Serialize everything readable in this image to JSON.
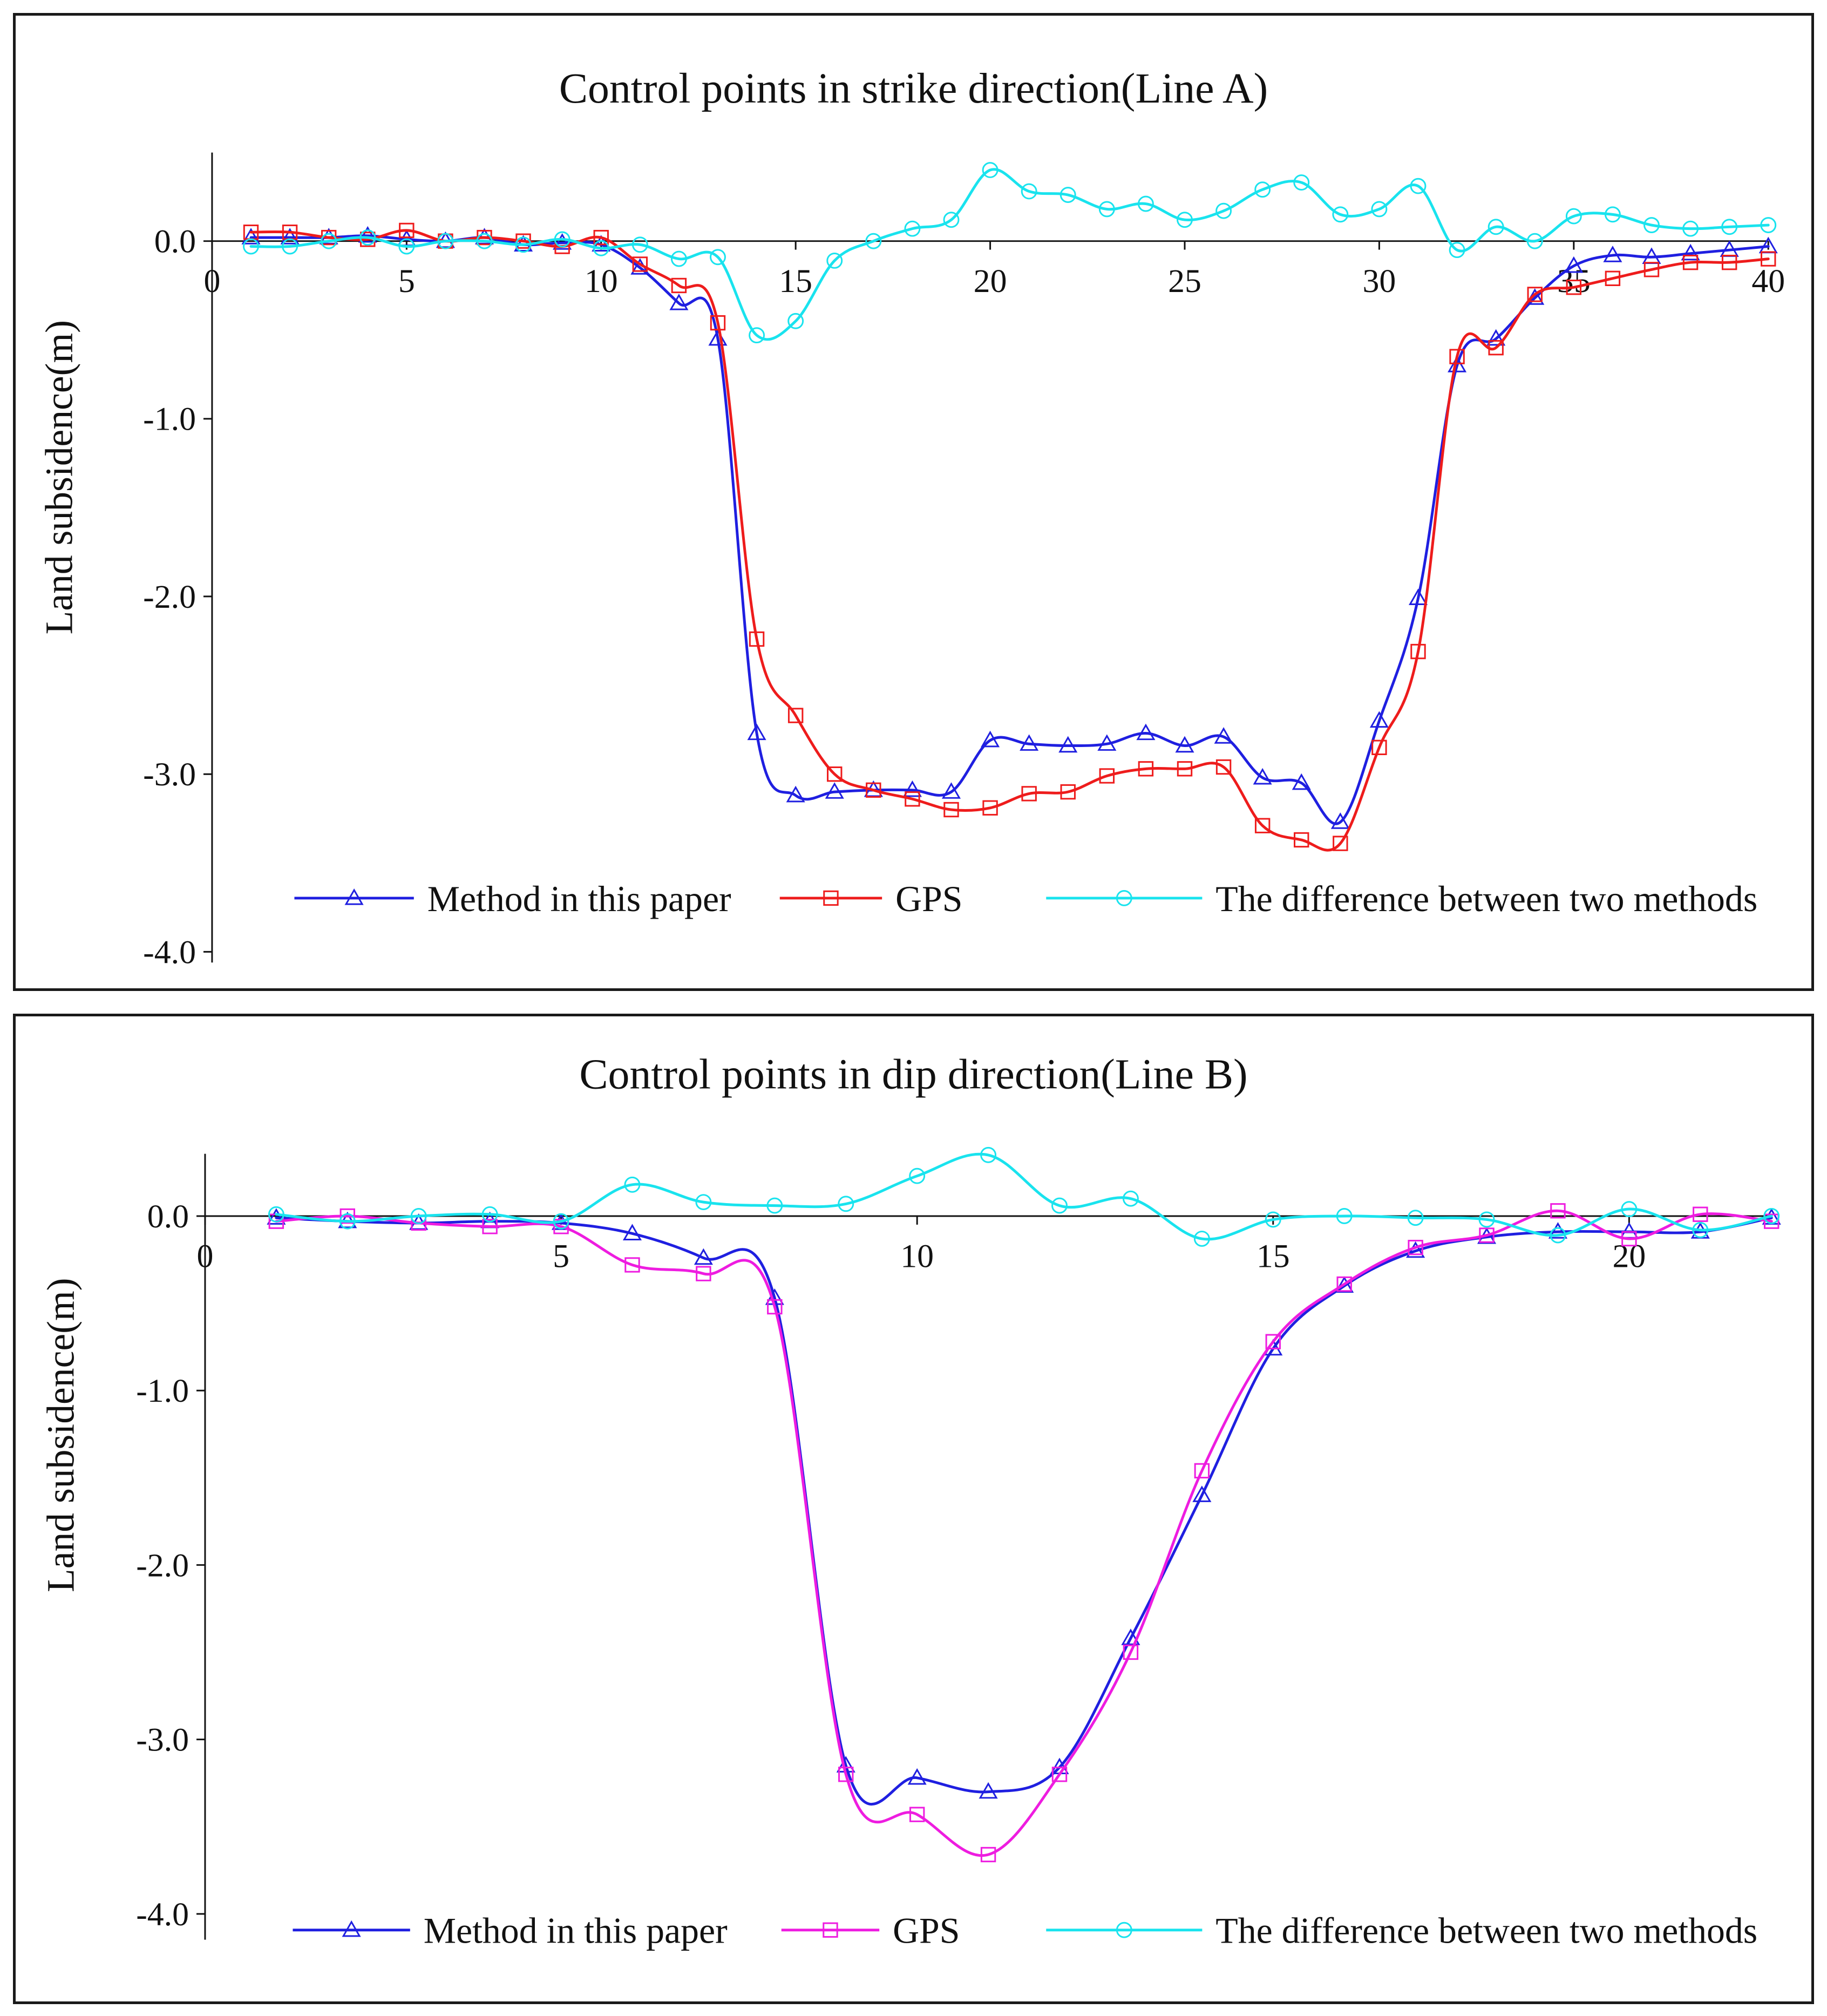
{
  "chart_data": [
    {
      "type": "line",
      "title": "Control points in strike direction(Line A)",
      "xlabel": "",
      "ylabel": "Land subsidence(m)",
      "xlim": [
        0,
        40
      ],
      "ylim": [
        -4.0,
        0.5
      ],
      "x_ticks": [
        "0",
        "5",
        "10",
        "15",
        "20",
        "25",
        "30",
        "35",
        "40"
      ],
      "y_ticks": [
        "0.0",
        "-1.0",
        "-2.0",
        "-3.0",
        "-4.0"
      ],
      "grid": false,
      "legend_position": "bottom",
      "x": [
        1,
        2,
        3,
        4,
        5,
        6,
        7,
        8,
        9,
        10,
        11,
        12,
        13,
        14,
        15,
        16,
        17,
        18,
        19,
        20,
        21,
        22,
        23,
        24,
        25,
        26,
        27,
        28,
        29,
        30,
        31,
        32,
        33,
        34,
        35,
        36,
        37,
        38,
        39,
        40
      ],
      "series": [
        {
          "name": "Method in this paper",
          "color": "#1f1fe0",
          "marker": "triangle",
          "values": [
            0.02,
            0.02,
            0.02,
            0.03,
            0.01,
            0.0,
            0.02,
            -0.02,
            -0.01,
            -0.02,
            -0.15,
            -0.35,
            -0.55,
            -2.77,
            -3.12,
            -3.1,
            -3.09,
            -3.09,
            -3.1,
            -2.81,
            -2.83,
            -2.84,
            -2.83,
            -2.77,
            -2.84,
            -2.79,
            -3.02,
            -3.05,
            -3.27,
            -2.7,
            -2.01,
            -0.7,
            -0.55,
            -0.32,
            -0.14,
            -0.08,
            -0.09,
            -0.07,
            -0.05,
            -0.03
          ]
        },
        {
          "name": "GPS",
          "color": "#ee1c1c",
          "marker": "square",
          "values": [
            0.05,
            0.05,
            0.02,
            0.01,
            0.06,
            0.0,
            0.02,
            0.0,
            -0.03,
            0.02,
            -0.13,
            -0.25,
            -0.46,
            -2.24,
            -2.67,
            -3.0,
            -3.09,
            -3.14,
            -3.2,
            -3.19,
            -3.11,
            -3.1,
            -3.01,
            -2.97,
            -2.97,
            -2.96,
            -3.29,
            -3.37,
            -3.39,
            -2.85,
            -2.31,
            -0.65,
            -0.6,
            -0.3,
            -0.26,
            -0.21,
            -0.16,
            -0.12,
            -0.12,
            -0.1
          ]
        },
        {
          "name": "The difference between two methods",
          "color": "#19e3ee",
          "marker": "circle",
          "values": [
            -0.03,
            -0.03,
            0.0,
            0.02,
            -0.03,
            0.0,
            0.0,
            -0.02,
            0.01,
            -0.04,
            -0.02,
            -0.1,
            -0.09,
            -0.53,
            -0.45,
            -0.11,
            0.0,
            0.07,
            0.12,
            0.4,
            0.28,
            0.26,
            0.18,
            0.21,
            0.12,
            0.17,
            0.29,
            0.33,
            0.15,
            0.18,
            0.31,
            -0.05,
            0.08,
            0.0,
            0.14,
            0.15,
            0.09,
            0.07,
            0.08,
            0.09
          ]
        }
      ]
    },
    {
      "type": "line",
      "title": "Control points in dip direction(Line B)",
      "xlabel": "",
      "ylabel": "Land subsidence(m)",
      "xlim": [
        0,
        22
      ],
      "ylim": [
        -4.0,
        0.5
      ],
      "x_ticks": [
        "0",
        "5",
        "10",
        "15",
        "20"
      ],
      "y_ticks": [
        "0.0",
        "-1.0",
        "-2.0",
        "-3.0",
        "-4.0"
      ],
      "grid": false,
      "legend_position": "bottom",
      "x": [
        1,
        2,
        3,
        4,
        5,
        6,
        7,
        8,
        9,
        10,
        11,
        12,
        13,
        14,
        15,
        16,
        17,
        18,
        19,
        20,
        21,
        22
      ],
      "series": [
        {
          "name": "Method in this paper",
          "color": "#1f1fe0",
          "marker": "triangle",
          "values": [
            -0.01,
            -0.03,
            -0.04,
            -0.03,
            -0.04,
            -0.1,
            -0.24,
            -0.47,
            -3.15,
            -3.22,
            -3.3,
            -3.16,
            -2.42,
            -1.6,
            -0.76,
            -0.4,
            -0.2,
            -0.12,
            -0.09,
            -0.09,
            -0.09,
            -0.01
          ]
        },
        {
          "name": "GPS",
          "color": "#ee1ce0",
          "marker": "square",
          "values": [
            -0.03,
            0.0,
            -0.04,
            -0.06,
            -0.06,
            -0.28,
            -0.33,
            -0.52,
            -3.2,
            -3.43,
            -3.66,
            -3.2,
            -2.5,
            -1.46,
            -0.72,
            -0.39,
            -0.18,
            -0.11,
            0.03,
            -0.13,
            0.01,
            -0.03
          ]
        },
        {
          "name": "The difference between two methods",
          "color": "#19e3ee",
          "marker": "circle",
          "values": [
            0.01,
            -0.03,
            0.0,
            0.01,
            -0.03,
            0.18,
            0.08,
            0.06,
            0.07,
            0.23,
            0.35,
            0.06,
            0.1,
            -0.13,
            -0.02,
            0.0,
            -0.01,
            -0.02,
            -0.11,
            0.04,
            -0.08,
            0.0
          ]
        }
      ]
    }
  ]
}
